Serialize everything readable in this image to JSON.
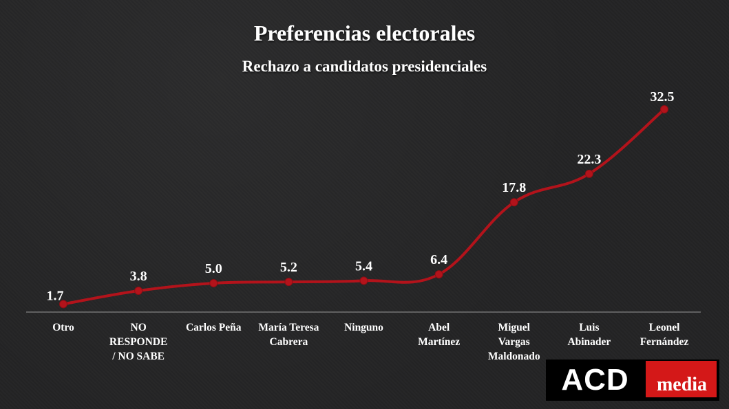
{
  "header": {
    "title": "Preferencias electorales",
    "subtitle": "Rechazo a candidatos presidenciales"
  },
  "chart_data": {
    "type": "line",
    "title": "Preferencias electorales",
    "subtitle": "Rechazo a candidatos presidenciales",
    "xlabel": "",
    "ylabel": "",
    "categories": [
      [
        "Otro"
      ],
      [
        "NO",
        "RESPONDE",
        "/ NO SABE"
      ],
      [
        "Carlos Peña"
      ],
      [
        "María Teresa",
        "Cabrera"
      ],
      [
        "Ninguno"
      ],
      [
        "Abel",
        "Martínez"
      ],
      [
        "Miguel",
        "Vargas",
        "Maldonado"
      ],
      [
        "Luis",
        "Abinader"
      ],
      [
        "Leonel",
        "Fernández"
      ]
    ],
    "series": [
      {
        "values": [
          1.7,
          3.8,
          5.0,
          5.2,
          5.4,
          6.4,
          17.8,
          22.3,
          32.5
        ],
        "labels": [
          "1.7",
          "3.8",
          "5.0",
          "5.2",
          "5.4",
          "6.4",
          "17.8",
          "22.3",
          "32.5"
        ],
        "color": "#b3131b"
      }
    ],
    "ylim": [
      0,
      32.5
    ],
    "grid": false,
    "legend": "none"
  },
  "logo": {
    "left_text": "ACD",
    "right_text": "media",
    "colors": {
      "dark": "#000000",
      "accent": "#d41818"
    }
  }
}
